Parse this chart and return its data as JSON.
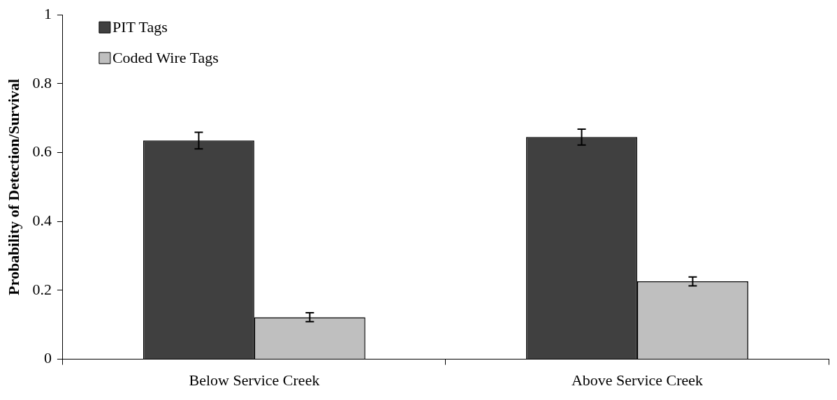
{
  "chart_data": {
    "type": "bar",
    "ylabel": "Probability of Detection/Survival",
    "categories": [
      "Below Service Creek",
      "Above Service Creek"
    ],
    "series": [
      {
        "name": "PIT Tags",
        "color": "#404040",
        "values": [
          0.635,
          0.645
        ],
        "errors": [
          0.024,
          0.023
        ]
      },
      {
        "name": "Coded Wire Tags",
        "color": "#bfbfbf",
        "values": [
          0.122,
          0.226
        ],
        "errors": [
          0.013,
          0.013
        ]
      }
    ],
    "ylim": [
      0,
      1
    ],
    "yticks": [
      0,
      {
        "value": 0.2,
        "label": "0.2"
      },
      {
        "value": 0.4,
        "label": "0.4"
      },
      {
        "value": 0.6,
        "label": "0.6"
      },
      {
        "value": 0.8,
        "label": "0.8"
      },
      1
    ],
    "grid": false,
    "legend": "top left"
  }
}
